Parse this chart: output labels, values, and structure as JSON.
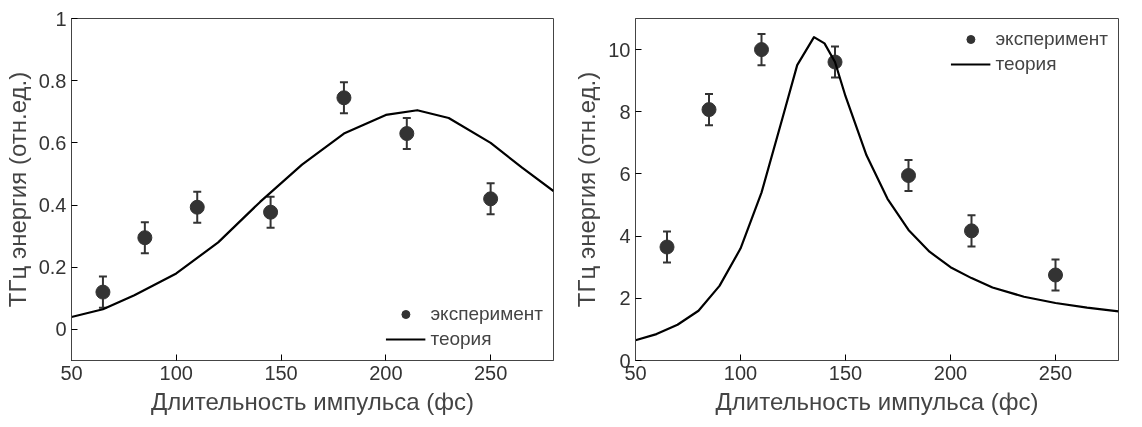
{
  "chart_data": [
    {
      "type": "scatter",
      "xlabel": "Длительность импульса (фс)",
      "ylabel": "ТГц энергия (отн.ед.)",
      "xlim": [
        50,
        280
      ],
      "ylim": [
        -0.1,
        1
      ],
      "xticks": [
        50,
        100,
        150,
        200,
        250
      ],
      "yticks": [
        0,
        0.2,
        0.4,
        0.6,
        0.8,
        1
      ],
      "grid": false,
      "legend": "bottom right",
      "series": [
        {
          "name": "эксперимент",
          "marker": "circle",
          "color": "#333333",
          "x": [
            65,
            85,
            110,
            145,
            180,
            210,
            250
          ],
          "values": [
            0.12,
            0.295,
            0.393,
            0.377,
            0.745,
            0.63,
            0.42
          ],
          "errors": [
            0.05,
            0.05,
            0.05,
            0.05,
            0.05,
            0.05,
            0.05
          ]
        },
        {
          "name": "теория",
          "type": "line",
          "line_style": "solid",
          "color": "#000000",
          "x": [
            50,
            65,
            80,
            100,
            120,
            140,
            160,
            180,
            200,
            215,
            230,
            250,
            265,
            280
          ],
          "values": [
            0.04,
            0.065,
            0.11,
            0.18,
            0.28,
            0.41,
            0.53,
            0.63,
            0.69,
            0.705,
            0.68,
            0.6,
            0.52,
            0.445
          ]
        }
      ]
    },
    {
      "type": "scatter",
      "xlabel": "Длительность импульса (фс)",
      "ylabel": "ТГц энергия (отн.ед.)",
      "xlim": [
        50,
        280
      ],
      "ylim": [
        0,
        11
      ],
      "xticks": [
        50,
        100,
        150,
        200,
        250
      ],
      "yticks": [
        0,
        2,
        4,
        6,
        8,
        10
      ],
      "grid": false,
      "legend": "top right",
      "series": [
        {
          "name": "эксперимент",
          "marker": "circle",
          "color": "#333333",
          "x": [
            65,
            85,
            110,
            145,
            180,
            210,
            250
          ],
          "values": [
            3.65,
            8.07,
            10.0,
            9.6,
            5.95,
            4.17,
            2.75
          ],
          "errors": [
            0.5,
            0.5,
            0.5,
            0.5,
            0.5,
            0.5,
            0.5
          ]
        },
        {
          "name": "теория",
          "type": "line",
          "line_style": "solid",
          "color": "#000000",
          "x": [
            50,
            60,
            70,
            80,
            90,
            100,
            110,
            120,
            127,
            135,
            140,
            145,
            150,
            160,
            170,
            180,
            190,
            200,
            210,
            220,
            235,
            250,
            265,
            280
          ],
          "values": [
            0.65,
            0.85,
            1.15,
            1.6,
            2.4,
            3.6,
            5.4,
            7.8,
            9.5,
            10.4,
            10.2,
            9.6,
            8.5,
            6.6,
            5.2,
            4.2,
            3.5,
            3.0,
            2.65,
            2.35,
            2.05,
            1.85,
            1.7,
            1.58
          ]
        }
      ]
    }
  ]
}
